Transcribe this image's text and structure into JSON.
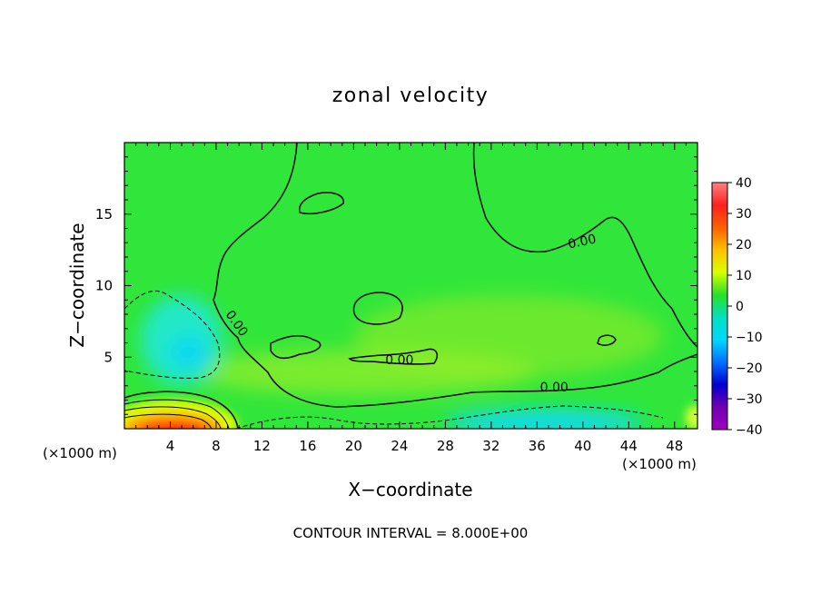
{
  "chart_data": {
    "type": "heatmap",
    "title": "zonal velocity",
    "xlabel": "X−coordinate",
    "ylabel": "Z−coordinate",
    "x_unit_left": "(×1000 m)",
    "x_unit_right": "(×1000 m)",
    "footer": "CONTOUR INTERVAL = 8.000E+00",
    "xlim": [
      0,
      50
    ],
    "ylim": [
      0,
      20
    ],
    "x_ticks": [
      4,
      8,
      12,
      16,
      20,
      24,
      28,
      32,
      36,
      40,
      44,
      48
    ],
    "x_tick_labels": [
      "4",
      "8",
      "12",
      "16",
      "20",
      "24",
      "28",
      "32",
      "36",
      "40",
      "44",
      "48"
    ],
    "y_ticks": [
      5,
      10,
      15
    ],
    "y_tick_labels": [
      "5",
      "10",
      "15"
    ],
    "colorbar": {
      "range": [
        -40,
        40
      ],
      "ticks": [
        40,
        30,
        20,
        10,
        0,
        -10,
        -20,
        -30,
        -40
      ],
      "tick_labels": [
        "40",
        "30",
        "20",
        "10",
        "0",
        "−10",
        "−20",
        "−30",
        "−40"
      ],
      "colors": [
        "#ff8080",
        "#ff2020",
        "#ff6000",
        "#ffc000",
        "#d8ff00",
        "#28e028",
        "#00e0c0",
        "#00d8ff",
        "#0070ff",
        "#0000d0",
        "#7000b0",
        "#a000c0"
      ]
    },
    "contour_labels": [
      {
        "text": "0.00",
        "x": 9.5,
        "z": 7.2,
        "angle": 55
      },
      {
        "text": "0.00",
        "x": 24,
        "z": 4.5,
        "angle": 0
      },
      {
        "text": "0.00",
        "x": 37.5,
        "z": 2.6,
        "angle": 0
      },
      {
        "text": "0.00",
        "x": 40,
        "z": 12.8,
        "angle": -12
      }
    ],
    "features": [
      {
        "desc": "strong positive jet near surface",
        "x": 4.5,
        "z": 0.3,
        "value": 35
      },
      {
        "desc": "negative region",
        "x": 5.5,
        "z": 5.5,
        "value": -10
      },
      {
        "desc": "negative region near surface",
        "x": 34,
        "z": 0.4,
        "value": -12
      }
    ]
  }
}
